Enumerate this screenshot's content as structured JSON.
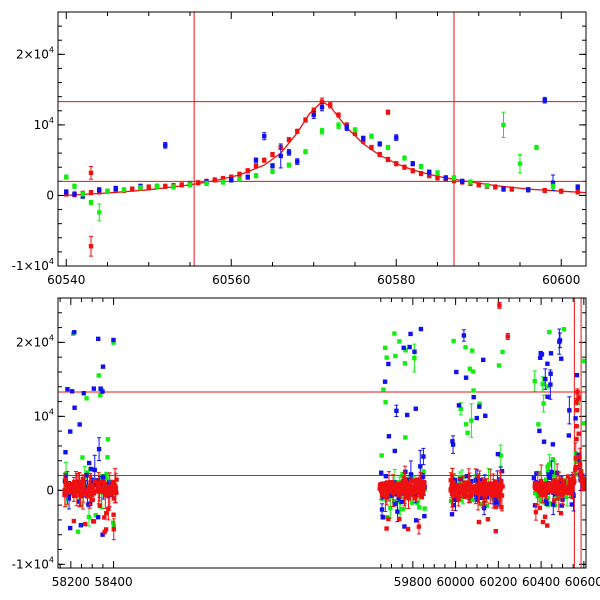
{
  "chart_data": [
    {
      "type": "scatter",
      "panel": "top",
      "xlim": [
        60539,
        60603
      ],
      "ylim": [
        -10000,
        26000
      ],
      "xticks": [
        60540,
        60560,
        60580,
        60600
      ],
      "yticks": [
        {
          "value": -10000,
          "base": "-1×10",
          "exp": "4"
        },
        {
          "value": 0,
          "base": "0",
          "exp": ""
        },
        {
          "value": 10000,
          "base": "10",
          "exp": "4"
        },
        {
          "value": 20000,
          "base": "2×10",
          "exp": "4"
        }
      ],
      "hlines": [
        2000,
        13300
      ],
      "vlines": [
        60555.5,
        60587
      ],
      "model_curve": {
        "color": "#ee1111",
        "x": [
          60540,
          60545,
          60550,
          60555,
          60558,
          60561,
          60564,
          60566,
          60568,
          60569.5,
          60571,
          60572,
          60573,
          60574,
          60576,
          60578,
          60580,
          60582,
          60585,
          60588,
          60592,
          60596,
          60600,
          60603
        ],
        "y": [
          0,
          350,
          800,
          1500,
          2100,
          2900,
          4300,
          6000,
          8900,
          11600,
          13300,
          12600,
          11100,
          9600,
          7300,
          5700,
          4500,
          3600,
          2700,
          2100,
          1400,
          900,
          600,
          400
        ]
      },
      "series": [
        {
          "color": "#ee1111",
          "x": [
            60540,
            60541,
            60542,
            60543,
            60544,
            60545,
            60546,
            60547,
            60548,
            60549,
            60550,
            60551,
            60552,
            60553,
            60554,
            60555,
            60556,
            60557,
            60558,
            60559,
            60560,
            60561,
            60562,
            60563,
            60564,
            60565,
            60566,
            60567,
            60568,
            60569,
            60570,
            60571,
            60572,
            60573,
            60574,
            60575,
            60576,
            60577,
            60578,
            60579,
            60580,
            60581,
            60582,
            60583,
            60584,
            60585,
            60586,
            60587,
            60588,
            60589,
            60590,
            60591,
            60592,
            60594,
            60596,
            60598,
            60600,
            60602,
            60543,
            60543,
            60579,
            60560,
            60586
          ],
          "y": [
            200,
            100,
            300,
            400,
            500,
            600,
            700,
            700,
            900,
            1000,
            1200,
            1300,
            1300,
            1400,
            1500,
            1700,
            1800,
            2000,
            2200,
            2400,
            2600,
            3000,
            3500,
            4200,
            5000,
            5800,
            6800,
            7900,
            9100,
            10700,
            12000,
            13300,
            12800,
            11400,
            10000,
            8800,
            7700,
            6800,
            5800,
            5100,
            4500,
            4000,
            3500,
            3100,
            2800,
            2500,
            2300,
            2100,
            1900,
            1700,
            1500,
            1300,
            1200,
            900,
            800,
            700,
            600,
            500,
            -7200,
            3200,
            11800,
            2300,
            2400
          ],
          "err": [
            300,
            300,
            300,
            300,
            300,
            300,
            300,
            300,
            300,
            300,
            300,
            300,
            300,
            300,
            300,
            300,
            300,
            300,
            300,
            300,
            300,
            300,
            300,
            300,
            300,
            300,
            300,
            300,
            300,
            300,
            400,
            500,
            400,
            300,
            300,
            300,
            300,
            300,
            300,
            300,
            300,
            300,
            300,
            300,
            300,
            300,
            300,
            300,
            300,
            300,
            300,
            300,
            300,
            300,
            300,
            300,
            300,
            300,
            1400,
            900,
            300,
            300,
            300
          ]
        },
        {
          "color": "#1111ee",
          "x": [
            60540,
            60541,
            60542,
            60544,
            60546,
            60549,
            60552,
            60555,
            60557,
            60560,
            60562,
            60563,
            60564,
            60565,
            60566,
            60567,
            60568,
            60570,
            60571,
            60574,
            60576,
            60578,
            60580,
            60582,
            60584,
            60586,
            60588,
            60591,
            60593,
            60596,
            60598,
            60599,
            60602
          ],
          "y": [
            500,
            200,
            -100,
            800,
            1000,
            1300,
            7100,
            1500,
            1900,
            2200,
            2600,
            5000,
            8400,
            4200,
            5600,
            6100,
            4800,
            11400,
            12500,
            9600,
            8100,
            7300,
            8200,
            4500,
            3300,
            2500,
            2000,
            1400,
            900,
            800,
            13500,
            1800,
            1200
          ],
          "err": [
            300,
            300,
            300,
            300,
            300,
            300,
            400,
            300,
            300,
            300,
            300,
            300,
            500,
            300,
            1700,
            400,
            400,
            500,
            500,
            400,
            300,
            300,
            400,
            300,
            300,
            300,
            300,
            300,
            300,
            300,
            400,
            1100,
            300
          ]
        },
        {
          "color": "#11ee11",
          "x": [
            60540,
            60541,
            60542,
            60543,
            60544,
            60545,
            60547,
            60549,
            60551,
            60553,
            60555,
            60557,
            60559,
            60561,
            60563,
            60565,
            60567,
            60569,
            60571,
            60573,
            60575,
            60577,
            60579,
            60581,
            60583,
            60585,
            60587,
            60589,
            60591,
            60593,
            60595,
            60597,
            60599
          ],
          "y": [
            2600,
            1300,
            200,
            -1000,
            -2400,
            600,
            800,
            1100,
            1300,
            1200,
            1500,
            1700,
            1900,
            2300,
            2800,
            3400,
            4300,
            6200,
            9100,
            9900,
            9300,
            8400,
            6800,
            5300,
            4100,
            3200,
            2500,
            1900,
            1400,
            10000,
            4500,
            6800,
            1300
          ],
          "err": [
            300,
            300,
            300,
            300,
            1200,
            300,
            300,
            300,
            300,
            300,
            300,
            300,
            300,
            300,
            300,
            300,
            300,
            300,
            400,
            400,
            300,
            300,
            300,
            300,
            300,
            300,
            300,
            300,
            300,
            1800,
            1300,
            300,
            300
          ]
        }
      ]
    },
    {
      "type": "scatter",
      "panel": "bottom",
      "xlim": [
        58140,
        60610
      ],
      "ylim": [
        -10500,
        26000
      ],
      "xticks": [
        58200,
        58400,
        59800,
        60000,
        60200,
        60400,
        60600
      ],
      "axis_break": [
        58430,
        59640
      ],
      "yticks": [
        {
          "value": -10000,
          "base": "-1×10",
          "exp": "4"
        },
        {
          "value": 0,
          "base": "0",
          "exp": ""
        },
        {
          "value": 10000,
          "base": "10",
          "exp": "4"
        },
        {
          "value": 20000,
          "base": "2×10",
          "exp": "4"
        }
      ],
      "hlines": [
        2000,
        13300
      ],
      "vlines": [
        60555.5,
        60587
      ],
      "season_ranges": [
        [
          58170,
          58415
        ],
        [
          59645,
          59860
        ],
        [
          59975,
          60220
        ],
        [
          60365,
          60600
        ]
      ],
      "highlight_points": {
        "color": "#ee1111",
        "x": [
          60205,
          60244,
          60565,
          60570,
          60575
        ],
        "y": [
          25000,
          20800,
          12000,
          13300,
          12500
        ]
      }
    }
  ]
}
